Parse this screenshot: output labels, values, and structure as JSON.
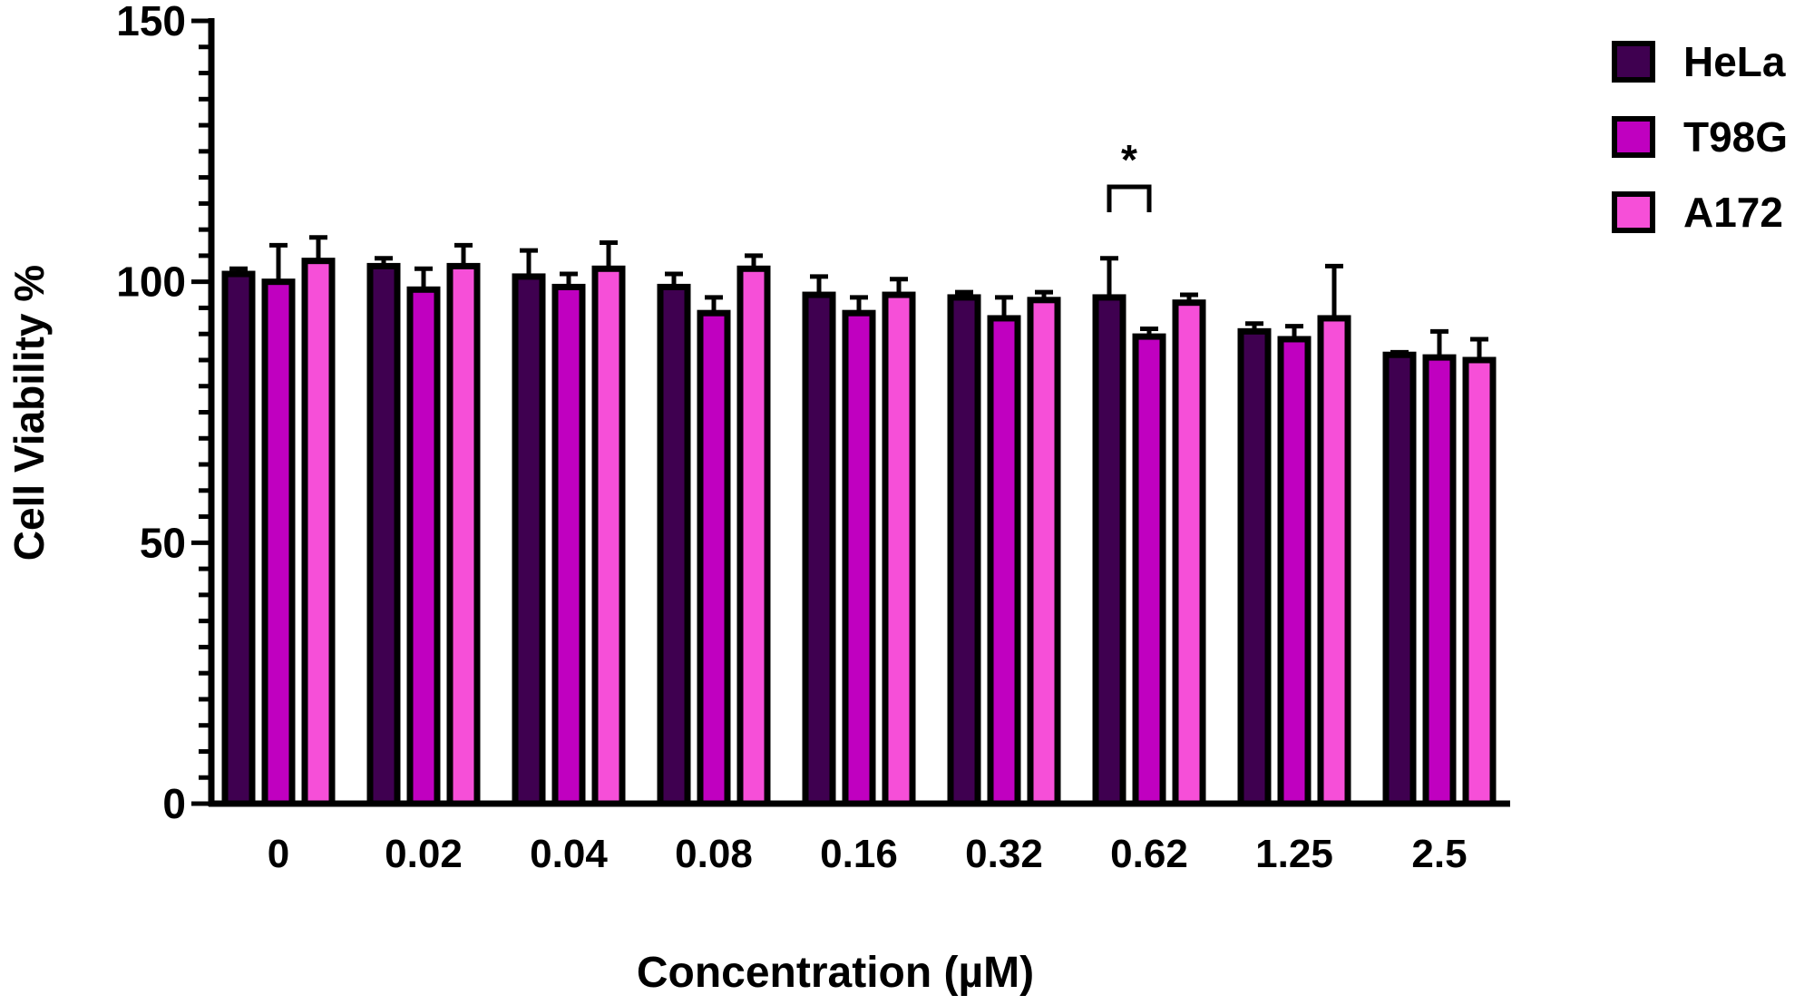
{
  "chart_data": {
    "type": "bar",
    "xlabel": "Concentration (µM)",
    "ylabel": "Cell Viability %",
    "ylim": [
      0,
      150
    ],
    "yticks": [
      "0",
      "50",
      "100",
      "150"
    ],
    "minor_tick_step": 5,
    "grid": false,
    "legend_position": "top-right",
    "categories": [
      "0",
      "0.02",
      "0.04",
      "0.08",
      "0.16",
      "0.32",
      "0.62",
      "1.25",
      "2.5"
    ],
    "series": [
      {
        "name": "HeLa",
        "color": "#3f0050",
        "values": [
          101.5,
          103,
          101,
          99,
          97.5,
          97,
          97,
          90.5,
          86
        ],
        "errors": [
          1,
          1.5,
          5,
          2.5,
          3.5,
          1,
          7.5,
          1.5,
          0.5
        ]
      },
      {
        "name": "T98G",
        "color": "#c000c0",
        "values": [
          100,
          98.5,
          99,
          94,
          94,
          93,
          89.5,
          89,
          85.5
        ],
        "errors": [
          7,
          4,
          2.5,
          3,
          3,
          4,
          1.5,
          2.5,
          5
        ]
      },
      {
        "name": "A172",
        "color": "#f64fd8",
        "values": [
          104,
          103,
          102.5,
          102.5,
          97.5,
          96.5,
          96,
          93,
          85
        ],
        "errors": [
          4.5,
          4,
          5,
          2.5,
          3,
          1.5,
          1.5,
          10,
          4
        ]
      }
    ],
    "annotations": [
      {
        "text": "*",
        "category": "0.62",
        "between": [
          "HeLa",
          "T98G"
        ]
      }
    ]
  }
}
